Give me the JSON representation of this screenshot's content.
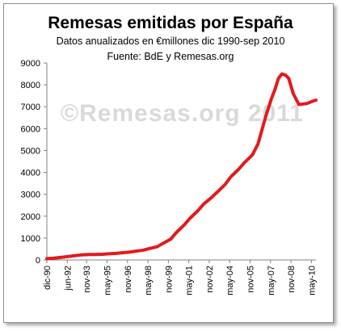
{
  "watermark": "©Remesas.org 2011",
  "chart_data": {
    "type": "line",
    "title": "Remesas emitidas por España",
    "subtitle": "Datos anualizados en €millones dic 1990-sep 2010",
    "source": "Fuente: BdE y Remesas.org",
    "xlabel": "",
    "ylabel": "",
    "ylim": [
      0,
      9000
    ],
    "yticks": [
      0,
      1000,
      2000,
      3000,
      4000,
      5000,
      6000,
      7000,
      8000,
      9000
    ],
    "x_range": [
      "1990-12",
      "2010-09"
    ],
    "xtick_labels": [
      "dic-90",
      "jun-92",
      "nov-93",
      "may-95",
      "nov-96",
      "may-98",
      "nov-99",
      "may-01",
      "nov-02",
      "may-04",
      "nov-05",
      "may-07",
      "nov-08",
      "may-10"
    ],
    "xtick_dates": [
      "1990-12",
      "1992-06",
      "1993-11",
      "1995-05",
      "1996-11",
      "1998-05",
      "1999-11",
      "2001-05",
      "2002-11",
      "2004-05",
      "2005-11",
      "2007-05",
      "2008-11",
      "2010-05"
    ],
    "grid": false,
    "legend": "none",
    "line_color": "#e31a1c",
    "series": [
      {
        "x": [
          "1990-12",
          "1991-06",
          "1992-01",
          "1992-06",
          "1993-01",
          "1993-06",
          "1994-01",
          "1994-06",
          "1995-01",
          "1995-06",
          "1996-01",
          "1996-06",
          "1997-01",
          "1997-06",
          "1998-01",
          "1998-06",
          "1999-01",
          "1999-06",
          "2000-01",
          "2000-06",
          "2001-01",
          "2001-06",
          "2002-01",
          "2002-06",
          "2003-01",
          "2003-06",
          "2004-01",
          "2004-06",
          "2005-01",
          "2005-06",
          "2006-01",
          "2006-06",
          "2007-01",
          "2007-06",
          "2007-09",
          "2007-12",
          "2008-03",
          "2008-06",
          "2008-09",
          "2009-01",
          "2009-06",
          "2010-01",
          "2010-06",
          "2010-09"
        ],
        "values": [
          60,
          80,
          120,
          150,
          200,
          230,
          250,
          250,
          260,
          280,
          300,
          330,
          360,
          400,
          450,
          520,
          600,
          750,
          950,
          1250,
          1600,
          1900,
          2250,
          2550,
          2850,
          3100,
          3450,
          3800,
          4150,
          4450,
          4800,
          5300,
          6600,
          7400,
          7800,
          8300,
          8500,
          8450,
          8300,
          7600,
          7100,
          7150,
          7250,
          7300
        ]
      }
    ]
  }
}
